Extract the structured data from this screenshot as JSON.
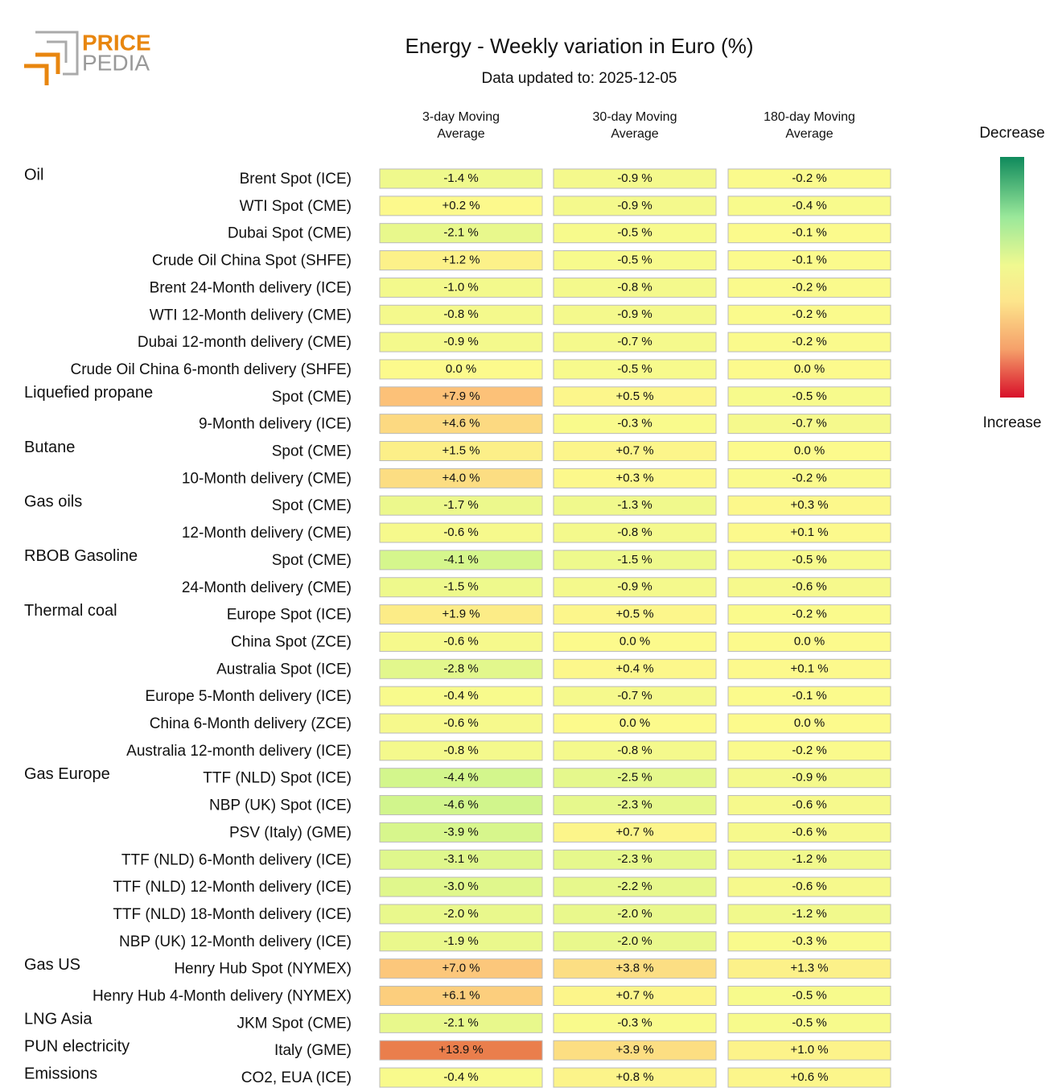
{
  "header": {
    "logo": [
      "PRICE",
      "PEDIA"
    ],
    "title": "Energy - Weekly variation in Euro (%)",
    "subtitle": "Data updated to: 2025-12-05"
  },
  "legend": {
    "top": "Decrease",
    "bottom": "Increase"
  },
  "columns": [
    [
      "3-day Moving",
      "Average"
    ],
    [
      "30-day Moving",
      "Average"
    ],
    [
      "180-day Moving",
      "Average"
    ]
  ],
  "groups": [
    {
      "name": "Oil",
      "rows": [
        {
          "label": "Brent Spot (ICE)",
          "cells": [
            "-1.4 %",
            "-0.9 %",
            "-0.2 %"
          ]
        },
        {
          "label": "WTI Spot (CME)",
          "cells": [
            "+0.2 %",
            "-0.9 %",
            "-0.4 %"
          ]
        },
        {
          "label": "Dubai Spot (CME)",
          "cells": [
            "-2.1 %",
            "-0.5 %",
            "-0.1 %"
          ]
        },
        {
          "label": "Crude Oil China Spot (SHFE)",
          "cells": [
            "+1.2 %",
            "-0.5 %",
            "-0.1 %"
          ]
        },
        {
          "label": "Brent 24-Month delivery (ICE)",
          "cells": [
            "-1.0 %",
            "-0.8 %",
            "-0.2 %"
          ]
        },
        {
          "label": "WTI 12-Month delivery (CME)",
          "cells": [
            "-0.8 %",
            "-0.9 %",
            "-0.2 %"
          ]
        },
        {
          "label": "Dubai 12-month delivery (CME)",
          "cells": [
            "-0.9 %",
            "-0.7 %",
            "-0.2 %"
          ]
        },
        {
          "label": "Crude Oil China 6-month delivery (SHFE)",
          "cells": [
            "0.0 %",
            "-0.5 %",
            "0.0 %"
          ]
        }
      ]
    },
    {
      "name": "Liquefied propane",
      "rows": [
        {
          "label": "Spot (CME)",
          "cells": [
            "+7.9 %",
            "+0.5 %",
            "-0.5 %"
          ]
        },
        {
          "label": "9-Month delivery (ICE)",
          "cells": [
            "+4.6 %",
            "-0.3 %",
            "-0.7 %"
          ]
        }
      ]
    },
    {
      "name": "Butane",
      "rows": [
        {
          "label": "Spot (CME)",
          "cells": [
            "+1.5 %",
            "+0.7 %",
            "0.0 %"
          ]
        },
        {
          "label": "10-Month delivery (CME)",
          "cells": [
            "+4.0 %",
            "+0.3 %",
            "-0.2 %"
          ]
        }
      ]
    },
    {
      "name": "Gas oils",
      "rows": [
        {
          "label": "Spot (CME)",
          "cells": [
            "-1.7 %",
            "-1.3 %",
            "+0.3 %"
          ]
        },
        {
          "label": "12-Month delivery (CME)",
          "cells": [
            "-0.6 %",
            "-0.8 %",
            "+0.1 %"
          ]
        }
      ]
    },
    {
      "name": "RBOB Gasoline",
      "rows": [
        {
          "label": "Spot (CME)",
          "cells": [
            "-4.1 %",
            "-1.5 %",
            "-0.5 %"
          ]
        },
        {
          "label": "24-Month delivery (CME)",
          "cells": [
            "-1.5 %",
            "-0.9 %",
            "-0.6 %"
          ]
        }
      ]
    },
    {
      "name": "Thermal coal",
      "rows": [
        {
          "label": "Europe Spot (ICE)",
          "cells": [
            "+1.9 %",
            "+0.5 %",
            "-0.2 %"
          ]
        },
        {
          "label": "China Spot (ZCE)",
          "cells": [
            "-0.6 %",
            "0.0 %",
            "0.0 %"
          ]
        },
        {
          "label": "Australia Spot (ICE)",
          "cells": [
            "-2.8 %",
            "+0.4 %",
            "+0.1 %"
          ]
        },
        {
          "label": "Europe 5-Month delivery (ICE)",
          "cells": [
            "-0.4 %",
            "-0.7 %",
            "-0.1 %"
          ]
        },
        {
          "label": "China 6-Month delivery (ZCE)",
          "cells": [
            "-0.6 %",
            "0.0 %",
            "0.0 %"
          ]
        },
        {
          "label": "Australia 12-month delivery (ICE)",
          "cells": [
            "-0.8 %",
            "-0.8 %",
            "-0.2 %"
          ]
        }
      ]
    },
    {
      "name": "Gas Europe",
      "rows": [
        {
          "label": "TTF (NLD) Spot (ICE)",
          "cells": [
            "-4.4 %",
            "-2.5 %",
            "-0.9 %"
          ]
        },
        {
          "label": "NBP (UK) Spot (ICE)",
          "cells": [
            "-4.6 %",
            "-2.3 %",
            "-0.6 %"
          ]
        },
        {
          "label": "PSV (Italy) (GME)",
          "cells": [
            "-3.9 %",
            "+0.7 %",
            "-0.6 %"
          ]
        },
        {
          "label": "TTF (NLD) 6-Month delivery (ICE)",
          "cells": [
            "-3.1 %",
            "-2.3 %",
            "-1.2 %"
          ]
        },
        {
          "label": "TTF (NLD) 12-Month delivery (ICE)",
          "cells": [
            "-3.0 %",
            "-2.2 %",
            "-0.6 %"
          ]
        },
        {
          "label": "TTF (NLD) 18-Month delivery (ICE)",
          "cells": [
            "-2.0 %",
            "-2.0 %",
            "-1.2 %"
          ]
        },
        {
          "label": "NBP (UK) 12-Month delivery (ICE)",
          "cells": [
            "-1.9 %",
            "-2.0 %",
            "-0.3 %"
          ]
        }
      ]
    },
    {
      "name": "Gas US",
      "rows": [
        {
          "label": "Henry Hub Spot (NYMEX)",
          "cells": [
            "+7.0 %",
            "+3.8 %",
            "+1.3 %"
          ]
        },
        {
          "label": "Henry Hub 4-Month delivery (NYMEX)",
          "cells": [
            "+6.1 %",
            "+0.7 %",
            "-0.5 %"
          ]
        }
      ]
    },
    {
      "name": "LNG Asia",
      "rows": [
        {
          "label": "JKM Spot (CME)",
          "cells": [
            "-2.1 %",
            "-0.3 %",
            "-0.5 %"
          ]
        }
      ]
    },
    {
      "name": "PUN electricity",
      "rows": [
        {
          "label": "Italy (GME)",
          "cells": [
            "+13.9 %",
            "+3.9 %",
            "+1.0 %"
          ]
        }
      ]
    },
    {
      "name": "Emissions",
      "rows": [
        {
          "label": "CO2, EUA (ICE)",
          "cells": [
            "-0.4 %",
            "+0.8 %",
            "+0.6 %"
          ]
        }
      ]
    }
  ]
}
